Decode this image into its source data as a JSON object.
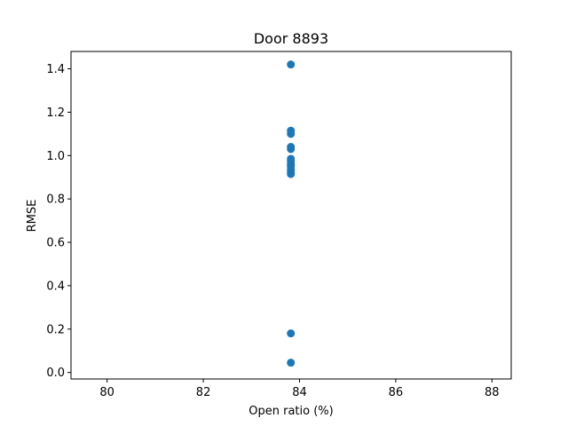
{
  "chart_data": {
    "type": "scatter",
    "title": "Door 8893",
    "xlabel": "Open ratio (%)",
    "ylabel": "RMSE",
    "xlim": [
      79.25,
      88.4
    ],
    "ylim": [
      -0.03,
      1.48
    ],
    "xticks": [
      80,
      82,
      84,
      86,
      88
    ],
    "yticks": [
      0.0,
      0.2,
      0.4,
      0.6,
      0.8,
      1.0,
      1.2,
      1.4
    ],
    "xtick_labels": [
      "80",
      "82",
      "84",
      "86",
      "88"
    ],
    "ytick_labels": [
      "0.0",
      "0.2",
      "0.4",
      "0.6",
      "0.8",
      "1.0",
      "1.2",
      "1.4"
    ],
    "grid": false,
    "marker_color": "#1f77b4",
    "series": [
      {
        "x": [
          83.82,
          83.82,
          83.82,
          83.82,
          83.82,
          83.82,
          83.82,
          83.82,
          83.82,
          83.82,
          83.82,
          83.82,
          83.82,
          83.82
        ],
        "y": [
          1.42,
          1.115,
          1.1,
          1.04,
          1.03,
          0.985,
          0.975,
          0.96,
          0.95,
          0.935,
          0.925,
          0.915,
          0.18,
          0.045
        ]
      }
    ]
  }
}
